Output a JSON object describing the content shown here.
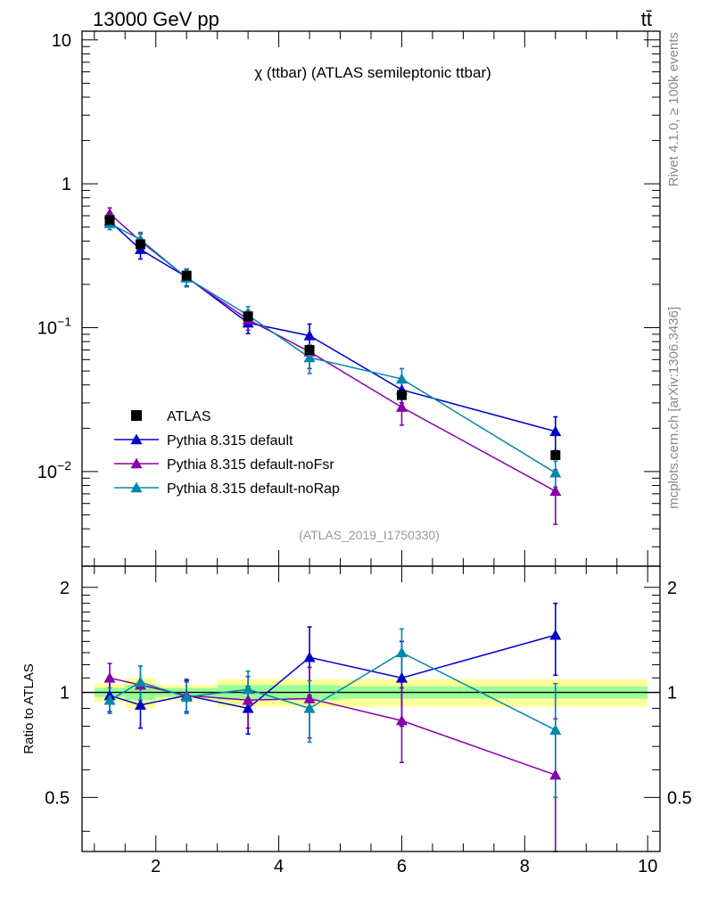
{
  "header": {
    "energy_label": "13000 GeV pp",
    "process_label": "tt̄"
  },
  "side_labels": {
    "rivet": "Rivet 4.1.0, ≥ 100k events",
    "source": "mcplots.cern.ch [arXiv:1306.3436]"
  },
  "chart_data": {
    "type": "line",
    "title": "χ (ttbar) (ATLAS semileptonic ttbar)",
    "analysis_id": "(ATLAS_2019_I1750330)",
    "x_range": [
      0.8,
      10.2
    ],
    "x_ticks": [
      2,
      4,
      6,
      8,
      10
    ],
    "main": {
      "y_scale": "log",
      "y_range": [
        0.0022,
        11.5
      ],
      "y_tick_labels": [
        {
          "value": 10,
          "base": "10",
          "exp": ""
        },
        {
          "value": 1,
          "base": "1",
          "exp": ""
        },
        {
          "value": 0.1,
          "base": "10",
          "exp": "−1"
        },
        {
          "value": 0.01,
          "base": "10",
          "exp": "−2"
        }
      ]
    },
    "ratio": {
      "ylabel": "Ratio to ATLAS",
      "y_range": [
        0.35,
        2.3
      ],
      "y_ticks": [
        0.5,
        1,
        2
      ],
      "y_tick_labels": [
        "0.5",
        "1",
        "2"
      ]
    },
    "bins": [
      {
        "lo": 1.0,
        "hi": 1.5,
        "band_stat": 0.03,
        "band_tot": 0.06
      },
      {
        "lo": 1.5,
        "hi": 2.0,
        "band_stat": 0.05,
        "band_tot": 0.1
      },
      {
        "lo": 2.0,
        "hi": 3.0,
        "band_stat": 0.03,
        "band_tot": 0.05
      },
      {
        "lo": 3.0,
        "hi": 4.0,
        "band_stat": 0.05,
        "band_tot": 0.09
      },
      {
        "lo": 4.0,
        "hi": 5.0,
        "band_stat": 0.05,
        "band_tot": 0.09
      },
      {
        "lo": 5.0,
        "hi": 7.0,
        "band_stat": 0.04,
        "band_tot": 0.09
      },
      {
        "lo": 7.0,
        "hi": 10.0,
        "band_stat": 0.04,
        "band_tot": 0.09
      }
    ],
    "data": {
      "name": "ATLAS",
      "color": "#000000",
      "x": [
        1.25,
        1.75,
        2.5,
        3.5,
        4.5,
        6.0,
        8.5
      ],
      "y": [
        0.56,
        0.38,
        0.23,
        0.12,
        0.07,
        0.034,
        0.013
      ]
    },
    "series": [
      {
        "name": "Pythia 8.315 default",
        "color": "#0000cc",
        "x": [
          1.25,
          1.75,
          2.5,
          3.5,
          4.5,
          6.0,
          8.5
        ],
        "y": [
          0.55,
          0.35,
          0.225,
          0.108,
          0.088,
          0.037,
          0.019
        ],
        "err": [
          0.05,
          0.05,
          0.03,
          0.017,
          0.018,
          0.007,
          0.005
        ],
        "ratio": [
          0.98,
          0.92,
          0.98,
          0.9,
          1.26,
          1.1,
          1.46
        ],
        "ratio_err": [
          0.1,
          0.13,
          0.1,
          0.14,
          0.28,
          0.3,
          0.34
        ]
      },
      {
        "name": "Pythia 8.315 default-noFsr",
        "color": "#8800aa",
        "x": [
          1.25,
          1.75,
          2.5,
          3.5,
          4.5,
          6.0,
          8.5
        ],
        "y": [
          0.62,
          0.4,
          0.223,
          0.114,
          0.068,
          0.028,
          0.0073
        ],
        "err": [
          0.06,
          0.05,
          0.03,
          0.018,
          0.016,
          0.007,
          0.003
        ],
        "ratio": [
          1.1,
          1.05,
          0.98,
          0.95,
          0.96,
          0.83,
          0.58
        ],
        "ratio_err": [
          0.11,
          0.14,
          0.11,
          0.16,
          0.22,
          0.2,
          0.26
        ]
      },
      {
        "name": "Pythia 8.315 default-noRap",
        "color": "#0088aa",
        "x": [
          1.25,
          1.75,
          2.5,
          3.5,
          4.5,
          6.0,
          8.5
        ],
        "y": [
          0.53,
          0.41,
          0.222,
          0.122,
          0.062,
          0.044,
          0.0098
        ],
        "err": [
          0.05,
          0.05,
          0.03,
          0.018,
          0.014,
          0.008,
          0.002
        ],
        "ratio": [
          0.95,
          1.07,
          0.97,
          1.02,
          0.9,
          1.3,
          0.78
        ],
        "ratio_err": [
          0.08,
          0.12,
          0.1,
          0.13,
          0.18,
          0.22,
          0.28
        ]
      }
    ]
  },
  "colors": {
    "band_stat": "#99ff99",
    "band_tot": "#ffff99",
    "frame": "#000000"
  }
}
